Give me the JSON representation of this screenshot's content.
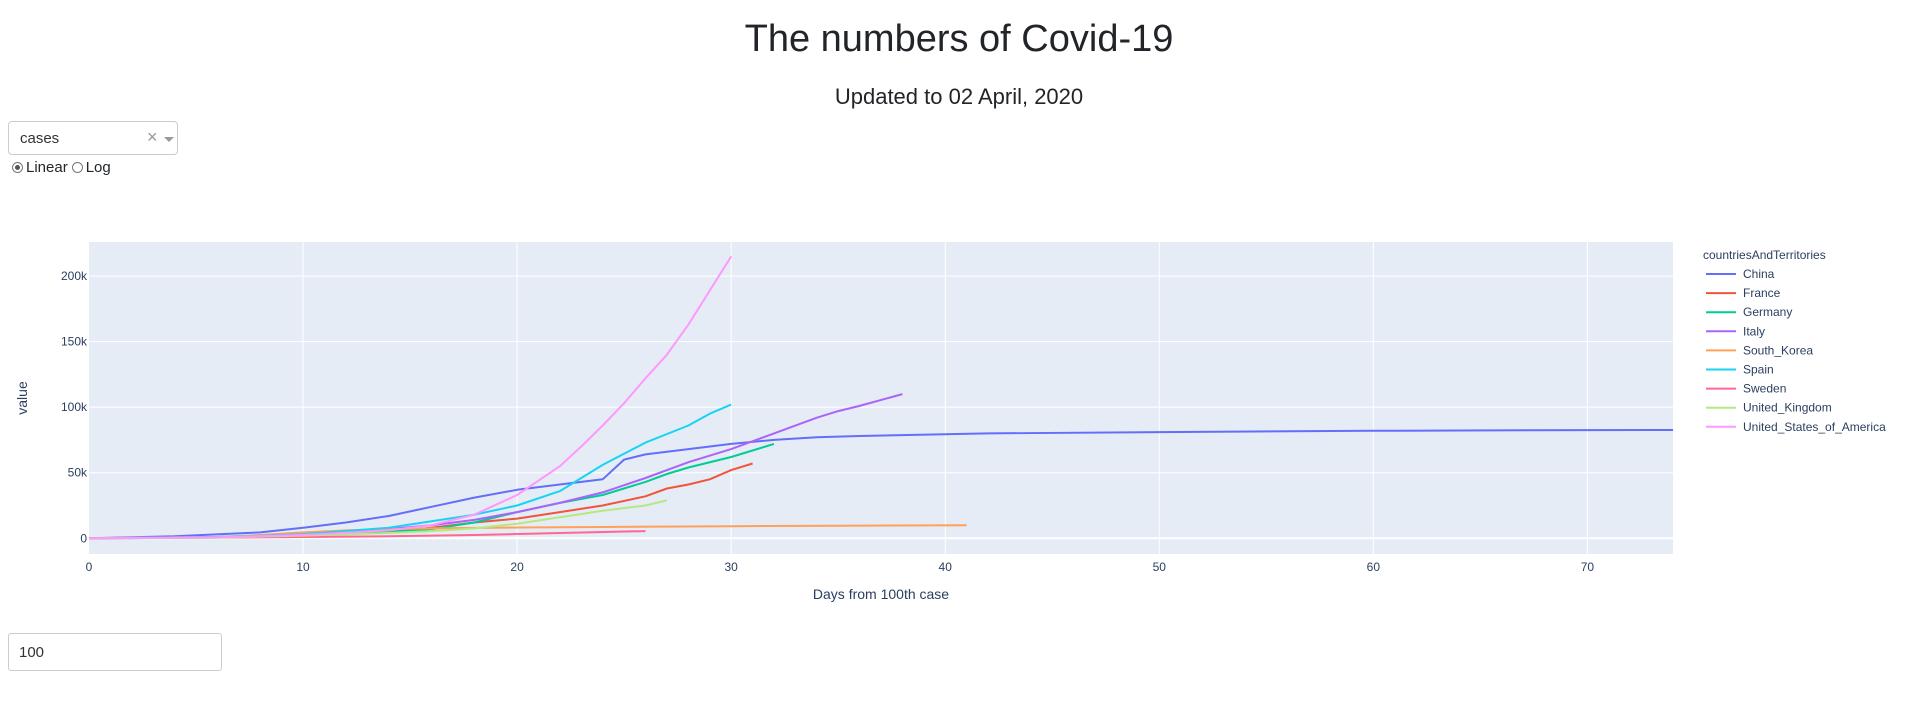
{
  "header": {
    "title": "The numbers of Covid-19",
    "subtitle": "Updated to 02 April, 2020"
  },
  "controls": {
    "metric_dropdown": {
      "value": "cases",
      "clear_icon": "×"
    },
    "scale_options": [
      {
        "label": "Linear",
        "checked": true
      },
      {
        "label": "Log",
        "checked": false
      }
    ],
    "threshold_input": {
      "value": "100"
    }
  },
  "chart_data": {
    "type": "line",
    "xlabel": "Days from 100th case",
    "ylabel": "value",
    "xlim": [
      0,
      74
    ],
    "ylim": [
      -12000,
      226000
    ],
    "x_ticks": [
      0,
      10,
      20,
      30,
      40,
      50,
      60,
      70
    ],
    "y_ticks": [
      0,
      50000,
      100000,
      150000,
      200000
    ],
    "y_tick_labels": [
      "0",
      "50k",
      "100k",
      "150k",
      "200k"
    ],
    "grid": true,
    "legend_title": "countriesAndTerritories",
    "legend_position": "right",
    "series": [
      {
        "name": "China",
        "color": "#636efa",
        "x": [
          0,
          4,
          8,
          10,
          12,
          14,
          16,
          18,
          20,
          22,
          24,
          25,
          26,
          28,
          30,
          32,
          34,
          36,
          42,
          50,
          60,
          70,
          74
        ],
        "y": [
          0,
          1500,
          4500,
          8000,
          12000,
          17000,
          24000,
          31000,
          37000,
          41000,
          45000,
          60000,
          64000,
          68000,
          72000,
          75000,
          77000,
          78000,
          80000,
          81000,
          82000,
          82500,
          82600
        ]
      },
      {
        "name": "France",
        "color": "#EF553B",
        "x": [
          0,
          6,
          10,
          14,
          16,
          18,
          20,
          22,
          24,
          26,
          27,
          28,
          29,
          30,
          31
        ],
        "y": [
          0,
          800,
          2500,
          5000,
          8000,
          12000,
          15000,
          20000,
          25000,
          32000,
          38000,
          41000,
          45000,
          52000,
          57000
        ]
      },
      {
        "name": "Germany",
        "color": "#00cc96",
        "x": [
          0,
          6,
          10,
          14,
          16,
          18,
          20,
          22,
          24,
          26,
          27,
          28,
          30,
          32
        ],
        "y": [
          0,
          600,
          2000,
          5000,
          7000,
          12000,
          20000,
          27000,
          33000,
          43000,
          49000,
          54000,
          62000,
          72000
        ]
      },
      {
        "name": "Italy",
        "color": "#ab63fa",
        "x": [
          0,
          6,
          10,
          14,
          16,
          18,
          20,
          22,
          24,
          26,
          28,
          30,
          32,
          34,
          35,
          36,
          38
        ],
        "y": [
          0,
          1000,
          3000,
          7000,
          10000,
          14000,
          20000,
          27000,
          35000,
          46000,
          58000,
          68000,
          80000,
          92000,
          97000,
          101000,
          110000
        ]
      },
      {
        "name": "South_Korea",
        "color": "#FFA15A",
        "x": [
          0,
          6,
          8,
          10,
          12,
          14,
          16,
          18,
          20,
          24,
          30,
          35,
          41
        ],
        "y": [
          0,
          1000,
          2500,
          4500,
          6000,
          7000,
          7500,
          7900,
          8200,
          8600,
          9200,
          9600,
          10000
        ]
      },
      {
        "name": "Spain",
        "color": "#19d3f3",
        "x": [
          0,
          6,
          10,
          14,
          16,
          18,
          20,
          22,
          24,
          26,
          28,
          29,
          30
        ],
        "y": [
          0,
          1000,
          3000,
          8000,
          13000,
          18000,
          25000,
          36000,
          56000,
          73000,
          86000,
          95000,
          102000
        ]
      },
      {
        "name": "Sweden",
        "color": "#FF6692",
        "x": [
          0,
          6,
          10,
          14,
          18,
          22,
          26
        ],
        "y": [
          0,
          500,
          1000,
          1500,
          2500,
          4000,
          5500
        ]
      },
      {
        "name": "United_Kingdom",
        "color": "#B6E880",
        "x": [
          0,
          6,
          10,
          14,
          16,
          18,
          20,
          22,
          24,
          26,
          27
        ],
        "y": [
          0,
          500,
          2000,
          4000,
          5500,
          7500,
          11000,
          16000,
          21000,
          25000,
          29000
        ]
      },
      {
        "name": "United_States_of_America",
        "color": "#FF97FF",
        "x": [
          0,
          6,
          10,
          14,
          16,
          18,
          20,
          22,
          23,
          24,
          25,
          26,
          27,
          28,
          29,
          30
        ],
        "y": [
          0,
          800,
          2500,
          6000,
          10000,
          18000,
          33000,
          55000,
          70000,
          86000,
          103000,
          122000,
          140000,
          163000,
          189000,
          215000
        ]
      }
    ]
  }
}
